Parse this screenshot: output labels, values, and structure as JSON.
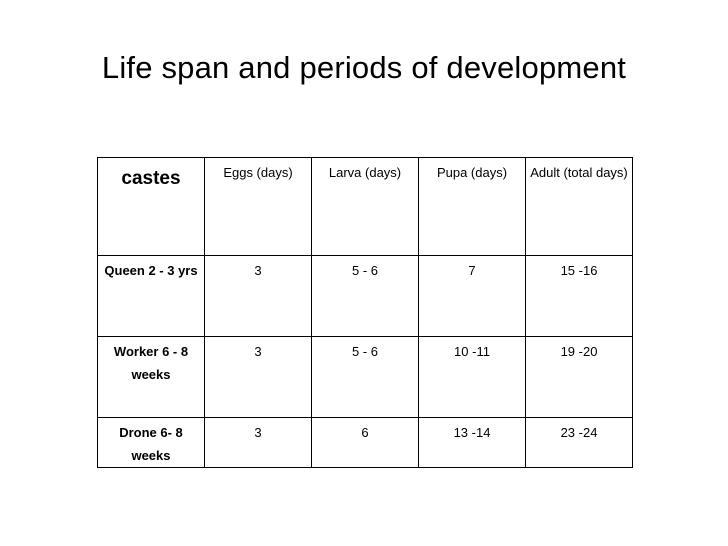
{
  "slide": {
    "title": "Life span and periods of development"
  },
  "table": {
    "headers": {
      "caste": "castes",
      "eggs": "Eggs (days)",
      "larva": "Larva (days)",
      "pupa": "Pupa (days)",
      "adult": "Adult (total days)"
    },
    "rows": [
      {
        "caste": "Queen 2 - 3 yrs",
        "eggs": "3",
        "larva": "5 - 6",
        "pupa": "7",
        "adult": "15 -16"
      },
      {
        "caste": "Worker 6 - 8 weeks",
        "eggs": "3",
        "larva": "5 - 6",
        "pupa": "10 -11",
        "adult": "19 -20"
      },
      {
        "caste": "Drone 6- 8 weeks",
        "eggs": "3",
        "larva": "6",
        "pupa": "13 -14",
        "adult": "23 -24"
      }
    ]
  }
}
